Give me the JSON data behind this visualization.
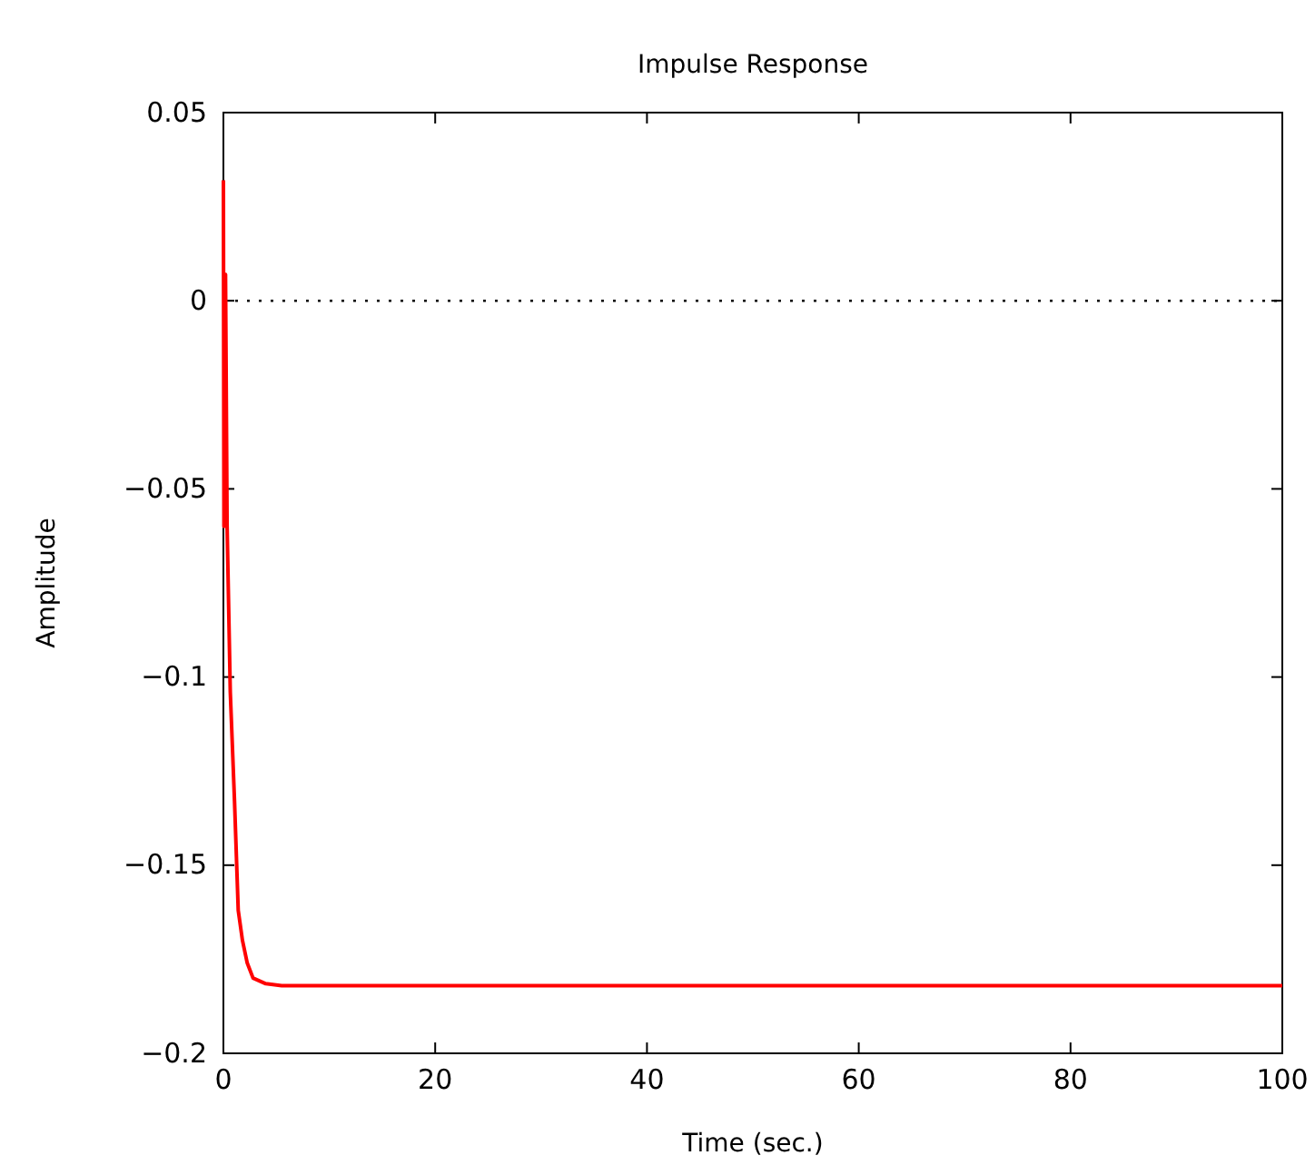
{
  "chart_data": {
    "type": "line",
    "title": "Impulse Response",
    "xlabel": "Time (sec.)",
    "ylabel": "Amplitude",
    "xlim": [
      0,
      100
    ],
    "xticks": [
      0,
      20,
      40,
      60,
      80,
      100
    ],
    "ylim": [
      -0.2,
      0.05
    ],
    "yticks": [
      -0.2,
      -0.15,
      -0.1,
      -0.05,
      0,
      0.05
    ],
    "ref_lines": [
      {
        "axis": "y",
        "value": 0,
        "color": "#000000",
        "line_style": "dotted"
      }
    ],
    "series": [
      {
        "color": "#ff0000",
        "x": [
          0,
          0.05,
          0.2,
          0.35,
          0.65,
          1.05,
          1.4,
          1.8,
          2.25,
          2.8,
          4,
          5.5,
          100
        ],
        "values": [
          0.032,
          -0.06,
          0.007,
          -0.06,
          -0.104,
          -0.133,
          -0.162,
          -0.17,
          -0.176,
          -0.18,
          -0.1815,
          -0.182,
          -0.182
        ]
      }
    ]
  }
}
